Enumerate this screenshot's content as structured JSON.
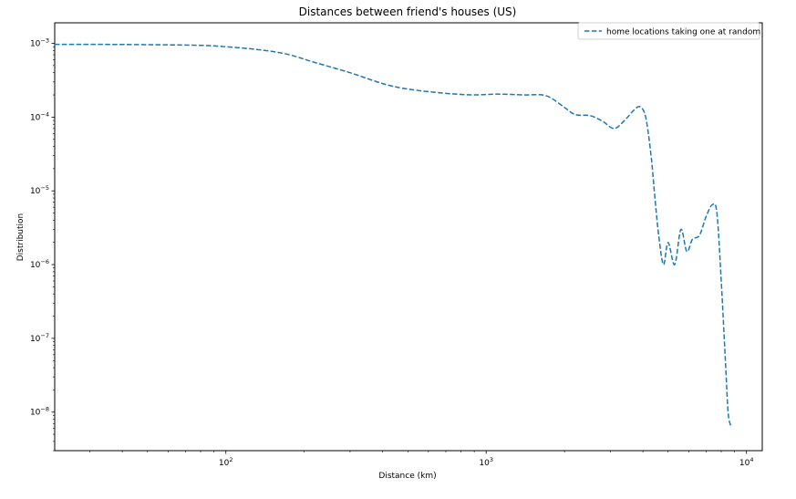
{
  "chart_data": {
    "type": "line",
    "title": "Distances between friend's houses (US)",
    "xlabel": "Distance (km)",
    "ylabel": "Distribution",
    "xscale": "log",
    "yscale": "log",
    "xlim": [
      22,
      11500
    ],
    "ylim": [
      3e-09,
      0.0019
    ],
    "grid": false,
    "legend": {
      "position": "top-right"
    },
    "x_ticks": [
      {
        "value": 100,
        "mantissa": "10",
        "exponent": "2"
      },
      {
        "value": 1000,
        "mantissa": "10",
        "exponent": "3"
      },
      {
        "value": 10000,
        "mantissa": "10",
        "exponent": "4"
      }
    ],
    "y_ticks": [
      {
        "value": 1e-08,
        "mantissa": "10",
        "exponent": "−8"
      },
      {
        "value": 1e-07,
        "mantissa": "10",
        "exponent": "−7"
      },
      {
        "value": 1e-06,
        "mantissa": "10",
        "exponent": "−6"
      },
      {
        "value": 1e-05,
        "mantissa": "10",
        "exponent": "−5"
      },
      {
        "value": 0.0001,
        "mantissa": "10",
        "exponent": "−4"
      },
      {
        "value": 0.001,
        "mantissa": "10",
        "exponent": "−3"
      }
    ],
    "series": [
      {
        "name": "home locations taking one at random",
        "color": "#1f77b4",
        "line_style": "dashed",
        "x": [
          22,
          30,
          50,
          80,
          100,
          130,
          170,
          220,
          300,
          400,
          500,
          700,
          900,
          1100,
          1400,
          1700,
          2000,
          2200,
          2500,
          2800,
          3100,
          3400,
          3700,
          3900,
          4100,
          4300,
          4450,
          4600,
          4800,
          5000,
          5300,
          5600,
          5900,
          6200,
          6600,
          7000,
          7400,
          7700,
          8000,
          8300,
          8500,
          8700
        ],
        "y": [
          0.00097,
          0.00097,
          0.00096,
          0.00094,
          0.0009,
          0.00083,
          0.00072,
          0.00055,
          0.0004,
          0.000285,
          0.00024,
          0.00021,
          0.0002,
          0.000205,
          0.0002,
          0.000195,
          0.000135,
          0.000108,
          0.000105,
          8.8e-05,
          7e-05,
          9e-05,
          0.000125,
          0.000138,
          0.0001,
          3e-05,
          8e-06,
          2.5e-06,
          1e-06,
          2e-06,
          1e-06,
          3e-06,
          1.5e-06,
          2.2e-06,
          2.5e-06,
          4.5e-06,
          6.5e-06,
          5e-06,
          6e-07,
          5e-08,
          1e-08,
          6.5e-09
        ]
      }
    ]
  }
}
